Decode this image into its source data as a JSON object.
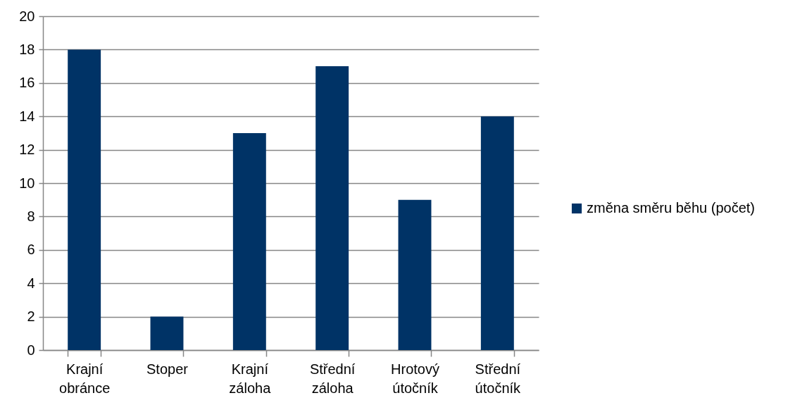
{
  "chart_data": {
    "type": "bar",
    "categories": [
      "Krajní obránce",
      "Stoper",
      "Krajní záloha",
      "Střední záloha",
      "Hrotový útočník",
      "Střední útočník"
    ],
    "series": [
      {
        "name": "změna směru běhu (počet)",
        "color": "#003366",
        "values": [
          18,
          2,
          13,
          17,
          9,
          14
        ]
      }
    ],
    "ylim": [
      0,
      20
    ],
    "yticks": [
      0,
      2,
      4,
      6,
      8,
      10,
      12,
      14,
      16,
      18,
      20
    ],
    "grid": "y",
    "legend": "right"
  }
}
